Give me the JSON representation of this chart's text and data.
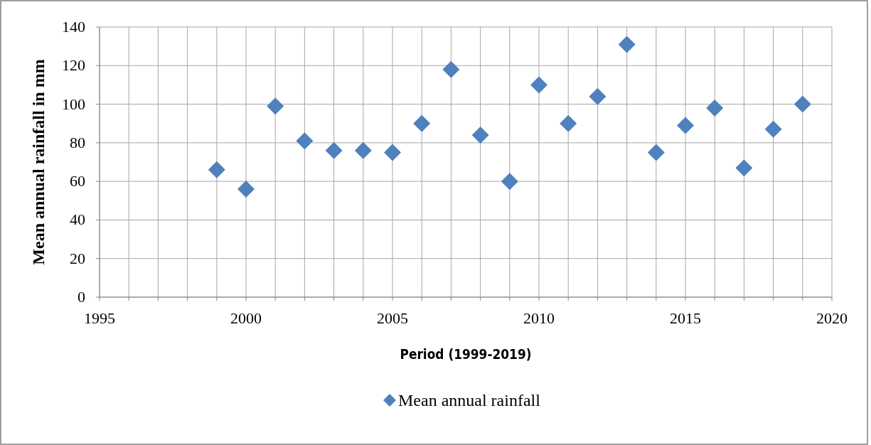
{
  "chart_data": {
    "type": "scatter",
    "xlabel": "Period (1999-2019)",
    "ylabel": "Mean annual rainfall in mm",
    "x": [
      1999,
      2000,
      2001,
      2002,
      2003,
      2004,
      2005,
      2006,
      2007,
      2008,
      2009,
      2010,
      2011,
      2012,
      2013,
      2014,
      2015,
      2016,
      2017,
      2018,
      2019
    ],
    "series": [
      {
        "name": "Mean annual rainfall",
        "color": "#4f81bd",
        "values": [
          66,
          56,
          99,
          81,
          76,
          76,
          75,
          90,
          118,
          84,
          60,
          110,
          90,
          104,
          131,
          75,
          89,
          98,
          67,
          87,
          100
        ]
      }
    ],
    "xlim": [
      1995,
      2020
    ],
    "xticks": [
      1995,
      {
        "value": 1996,
        "label": null
      },
      {
        "value": 1997,
        "label": null
      },
      {
        "value": 1998,
        "label": null
      },
      {
        "value": 1999,
        "label": null
      },
      2000,
      {
        "value": 2001,
        "label": null
      },
      {
        "value": 2002,
        "label": null
      },
      {
        "value": 2003,
        "label": null
      },
      {
        "value": 2004,
        "label": null
      },
      2005,
      {
        "value": 2006,
        "label": null
      },
      {
        "value": 2007,
        "label": null
      },
      {
        "value": 2008,
        "label": null
      },
      {
        "value": 2009,
        "label": null
      },
      2010,
      {
        "value": 2011,
        "label": null
      },
      {
        "value": 2012,
        "label": null
      },
      {
        "value": 2013,
        "label": null
      },
      {
        "value": 2014,
        "label": null
      },
      2015,
      {
        "value": 2016,
        "label": null
      },
      {
        "value": 2017,
        "label": null
      },
      {
        "value": 2018,
        "label": null
      },
      {
        "value": 2019,
        "label": null
      },
      2020
    ],
    "ylim": [
      0,
      140
    ],
    "yticks": [
      0,
      20,
      40,
      60,
      80,
      100,
      120,
      140
    ],
    "grid": true,
    "legend": "bottom",
    "marker": "diamond"
  }
}
